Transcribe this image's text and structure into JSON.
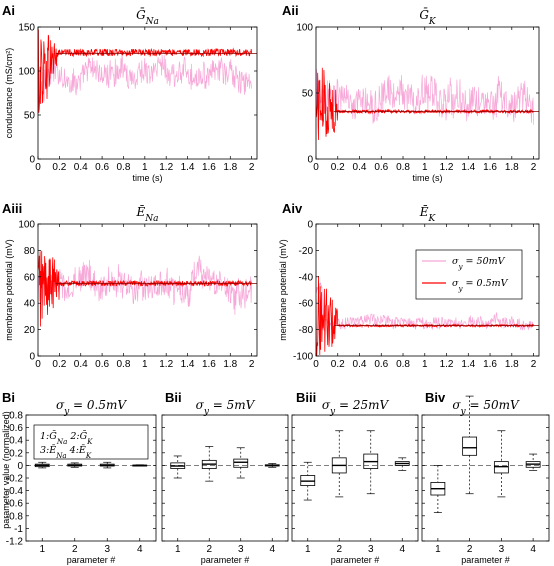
{
  "colors": {
    "red": "#ff0000",
    "dark_red": "#8b0000",
    "pink": "#f7a8d8",
    "black": "#000000"
  },
  "chart_data": [
    {
      "id": "Ai",
      "type": "line",
      "panel_label": "Ai",
      "title": "Ḡ_Na",
      "xlabel": "time (s)",
      "ylabel": "conductance (mS/cm²)",
      "xlim": [
        0,
        2.05
      ],
      "ylim": [
        0,
        150
      ],
      "xticks": [
        "0",
        "0.2",
        "0.4",
        "0.6",
        "0.8",
        "1",
        "1.2",
        "1.4",
        "1.6",
        "1.8",
        "2"
      ],
      "yticks": [
        "0",
        "50",
        "100",
        "150"
      ],
      "true_value": 120,
      "series": [
        {
          "style": "pink",
          "start": 70,
          "mean": 95,
          "noise": 20,
          "settle_time": 0.0
        },
        {
          "style": "red",
          "start": 40,
          "mean": 121,
          "noise": 4,
          "settle_time": 0.2
        }
      ]
    },
    {
      "id": "Aii",
      "type": "line",
      "panel_label": "Aii",
      "title": "Ḡ_K",
      "xlabel": "time (s)",
      "ylabel": "",
      "xlim": [
        0,
        2.05
      ],
      "ylim": [
        0,
        100
      ],
      "xticks": [
        "0",
        "0.2",
        "0.4",
        "0.6",
        "0.8",
        "1",
        "1.2",
        "1.4",
        "1.6",
        "1.8",
        "2"
      ],
      "yticks": [
        "0",
        "50",
        "100"
      ],
      "true_value": 36,
      "series": [
        {
          "style": "pink",
          "start": 50,
          "mean": 45,
          "noise": 18,
          "settle_time": 0.0
        },
        {
          "style": "red",
          "start": 60,
          "mean": 36,
          "noise": 1.2,
          "settle_time": 0.2
        }
      ]
    },
    {
      "id": "Aiii",
      "type": "line",
      "panel_label": "Aiii",
      "title": "Ē_Na",
      "xlabel": "",
      "ylabel": "membrane potential (mV)",
      "xlim": [
        0,
        2.05
      ],
      "ylim": [
        0,
        100
      ],
      "xticks": [
        "0",
        "0.2",
        "0.4",
        "0.6",
        "0.8",
        "1",
        "1.2",
        "1.4",
        "1.6",
        "1.8",
        "2"
      ],
      "yticks": [
        "0",
        "20",
        "40",
        "60",
        "80",
        "100"
      ],
      "true_value": 55,
      "series": [
        {
          "style": "pink",
          "start": 50,
          "mean": 55,
          "noise": 15,
          "settle_time": 0.0
        },
        {
          "style": "red",
          "start": 50,
          "mean": 55,
          "noise": 2,
          "settle_time": 0.2
        }
      ]
    },
    {
      "id": "Aiv",
      "type": "line",
      "panel_label": "Aiv",
      "title": "Ē_K",
      "xlabel": "",
      "ylabel": "membrane potential (mV)",
      "xlim": [
        0,
        2.05
      ],
      "ylim": [
        -100,
        0
      ],
      "xticks": [
        "0",
        "0.2",
        "0.4",
        "0.6",
        "0.8",
        "1",
        "1.2",
        "1.4",
        "1.6",
        "1.8",
        "2"
      ],
      "yticks": [
        "-100",
        "-80",
        "-60",
        "-40",
        "-20",
        "0"
      ],
      "true_value": -77,
      "legend": [
        {
          "label": "σ_y = 50mV",
          "style": "pink"
        },
        {
          "label": "σ_y = 0.5mV",
          "style": "red"
        }
      ],
      "series": [
        {
          "style": "pink",
          "start": -50,
          "mean": -75,
          "noise": 6,
          "settle_time": 0.0
        },
        {
          "style": "red",
          "start": -50,
          "mean": -77,
          "noise": 0.8,
          "settle_time": 0.2
        }
      ]
    },
    {
      "id": "Bi",
      "type": "box",
      "panel_label": "Bi",
      "title": "σ_y = 0.5mV",
      "xlabel": "parameter #",
      "ylabel": "parameter value (normalized)",
      "ylim": [
        -1.2,
        0.8
      ],
      "yticks": [
        "-1.2",
        "-1",
        "-0.8",
        "-0.6",
        "-0.4",
        "-0.2",
        "0",
        "0.2",
        "0.4",
        "0.6",
        "0.8"
      ],
      "categories": [
        "1",
        "2",
        "3",
        "4"
      ],
      "legend_box": [
        "1:Ḡ_Na  2:Ḡ_K",
        "3:Ē_Na  4:Ē_K"
      ],
      "boxes": [
        {
          "wl": -0.04,
          "q1": -0.02,
          "med": 0.0,
          "q3": 0.02,
          "wh": 0.05
        },
        {
          "wl": -0.03,
          "q1": -0.01,
          "med": 0.0,
          "q3": 0.02,
          "wh": 0.04
        },
        {
          "wl": -0.04,
          "q1": -0.01,
          "med": 0.0,
          "q3": 0.02,
          "wh": 0.05
        },
        {
          "wl": -0.01,
          "q1": -0.005,
          "med": 0.0,
          "q3": 0.005,
          "wh": 0.01
        }
      ]
    },
    {
      "id": "Bii",
      "type": "box",
      "panel_label": "Bii",
      "title": "σ_y = 5mV",
      "xlabel": "parameter #",
      "ylabel": "",
      "ylim": [
        -1.2,
        0.8
      ],
      "categories": [
        "1",
        "2",
        "3",
        "4"
      ],
      "boxes": [
        {
          "wl": -0.2,
          "q1": -0.05,
          "med": -0.01,
          "q3": 0.04,
          "wh": 0.15
        },
        {
          "wl": -0.25,
          "q1": -0.05,
          "med": 0.02,
          "q3": 0.08,
          "wh": 0.3
        },
        {
          "wl": -0.2,
          "q1": -0.03,
          "med": 0.05,
          "q3": 0.1,
          "wh": 0.28
        },
        {
          "wl": -0.03,
          "q1": -0.01,
          "med": 0.0,
          "q3": 0.01,
          "wh": 0.03
        }
      ]
    },
    {
      "id": "Biii",
      "type": "box",
      "panel_label": "Biii",
      "title": "σ_y = 25mV",
      "xlabel": "parameter #",
      "ylabel": "",
      "ylim": [
        -1.2,
        0.8
      ],
      "categories": [
        "1",
        "2",
        "3",
        "4"
      ],
      "boxes": [
        {
          "wl": -0.55,
          "q1": -0.32,
          "med": -0.25,
          "q3": -0.16,
          "wh": 0.05
        },
        {
          "wl": -0.5,
          "q1": -0.12,
          "med": 0.0,
          "q3": 0.12,
          "wh": 0.55
        },
        {
          "wl": -0.45,
          "q1": -0.05,
          "med": 0.06,
          "q3": 0.18,
          "wh": 0.55
        },
        {
          "wl": -0.08,
          "q1": 0.0,
          "med": 0.03,
          "q3": 0.06,
          "wh": 0.12
        }
      ]
    },
    {
      "id": "Biv",
      "type": "box",
      "panel_label": "Biv",
      "title": "σ_y = 50mV",
      "xlabel": "parameter #",
      "ylabel": "",
      "ylim": [
        -1.2,
        0.8
      ],
      "categories": [
        "1",
        "2",
        "3",
        "4"
      ],
      "boxes": [
        {
          "wl": -0.75,
          "q1": -0.47,
          "med": -0.37,
          "q3": -0.27,
          "wh": 0.0
        },
        {
          "wl": -0.45,
          "q1": 0.16,
          "med": 0.28,
          "q3": 0.45,
          "wh": 1.1
        },
        {
          "wl": -0.5,
          "q1": -0.12,
          "med": -0.02,
          "q3": 0.06,
          "wh": 0.55
        },
        {
          "wl": -0.08,
          "q1": -0.03,
          "med": 0.02,
          "q3": 0.06,
          "wh": 0.18
        }
      ]
    }
  ]
}
